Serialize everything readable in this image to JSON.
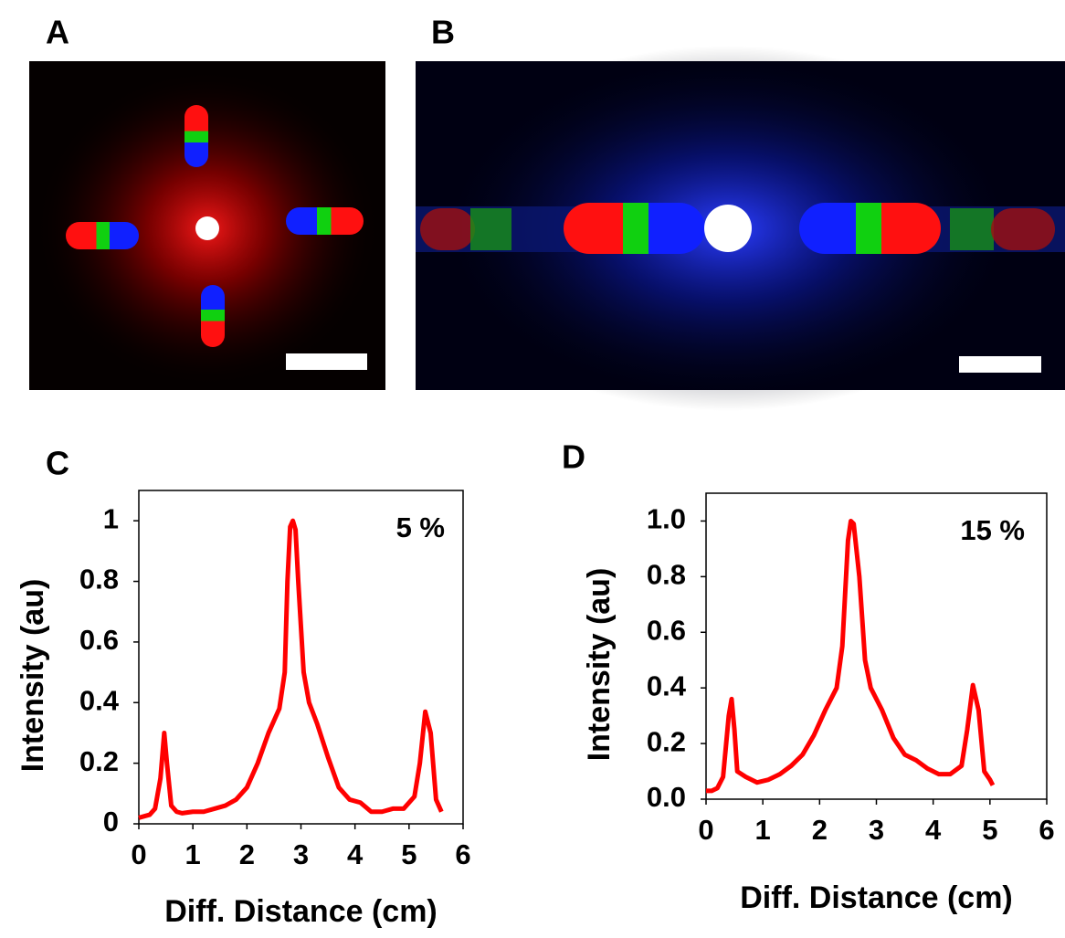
{
  "panel_labels": [
    "A",
    "B",
    "C",
    "D"
  ],
  "chart_data": [
    {
      "type": "line",
      "xlabel": "Diff. Distance (cm)",
      "ylabel": "Intensity (au)",
      "annotation": "5 %",
      "x": [
        0,
        0.1,
        0.2,
        0.3,
        0.4,
        0.47,
        0.52,
        0.6,
        0.7,
        0.8,
        1.0,
        1.2,
        1.4,
        1.6,
        1.8,
        2.0,
        2.2,
        2.4,
        2.6,
        2.7,
        2.75,
        2.8,
        2.85,
        2.9,
        2.95,
        3.05,
        3.15,
        3.3,
        3.5,
        3.7,
        3.9,
        4.1,
        4.3,
        4.5,
        4.7,
        4.9,
        5.1,
        5.2,
        5.3,
        5.4,
        5.5,
        5.6
      ],
      "series": [
        {
          "color": "#ff0000",
          "values": [
            0.02,
            0.025,
            0.03,
            0.05,
            0.15,
            0.3,
            0.2,
            0.06,
            0.04,
            0.035,
            0.04,
            0.04,
            0.05,
            0.06,
            0.08,
            0.12,
            0.2,
            0.3,
            0.38,
            0.5,
            0.8,
            0.98,
            1.0,
            0.97,
            0.8,
            0.5,
            0.4,
            0.33,
            0.22,
            0.12,
            0.08,
            0.07,
            0.04,
            0.04,
            0.05,
            0.05,
            0.09,
            0.2,
            0.37,
            0.3,
            0.08,
            0.04
          ]
        }
      ],
      "xlim": [
        0,
        6
      ],
      "ylim": [
        0,
        1.1
      ],
      "xticks": [
        0,
        1,
        2,
        3,
        4,
        5,
        6
      ],
      "yticks": [
        0,
        0.2,
        0.4,
        0.6,
        0.8,
        1
      ]
    },
    {
      "type": "line",
      "xlabel": "Diff. Distance (cm)",
      "ylabel": "Intensity (au)",
      "annotation": "15 %",
      "x": [
        0,
        0.1,
        0.2,
        0.3,
        0.4,
        0.45,
        0.5,
        0.55,
        0.7,
        0.9,
        1.1,
        1.3,
        1.5,
        1.7,
        1.9,
        2.1,
        2.3,
        2.4,
        2.5,
        2.55,
        2.6,
        2.7,
        2.8,
        2.9,
        3.1,
        3.3,
        3.5,
        3.7,
        3.9,
        4.1,
        4.3,
        4.5,
        4.6,
        4.7,
        4.8,
        4.9,
        5.0,
        5.05
      ],
      "series": [
        {
          "color": "#ff0000",
          "values": [
            0.03,
            0.03,
            0.04,
            0.08,
            0.3,
            0.36,
            0.25,
            0.1,
            0.08,
            0.06,
            0.07,
            0.09,
            0.12,
            0.16,
            0.23,
            0.32,
            0.4,
            0.55,
            0.93,
            1.0,
            0.99,
            0.8,
            0.5,
            0.4,
            0.32,
            0.22,
            0.16,
            0.14,
            0.11,
            0.09,
            0.09,
            0.12,
            0.25,
            0.41,
            0.32,
            0.1,
            0.07,
            0.05
          ]
        }
      ],
      "xlim": [
        0,
        6
      ],
      "ylim": [
        0,
        1.1
      ],
      "xticks": [
        0,
        1,
        2,
        3,
        4,
        5,
        6
      ],
      "yticks": [
        {
          "value": 0,
          "label": "0.0"
        },
        0.2,
        0.4,
        0.6,
        0.8,
        {
          "value": 1,
          "label": "1.0"
        }
      ]
    }
  ]
}
